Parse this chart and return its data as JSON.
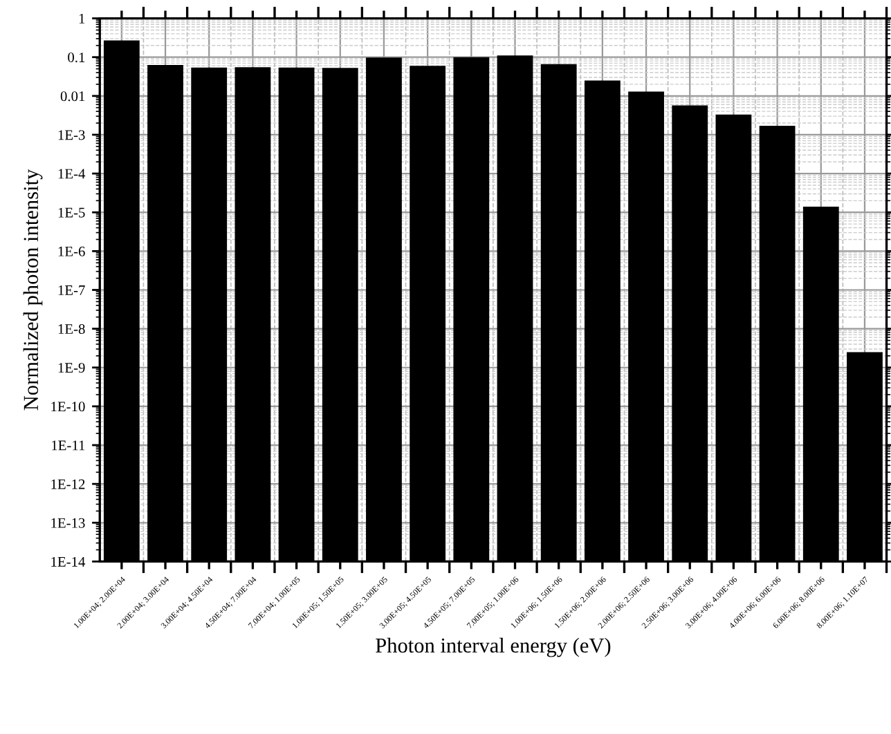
{
  "chart_data": {
    "type": "bar",
    "xlabel": "Photon interval energy (eV)",
    "ylabel": "Normalized photon intensity",
    "categories": [
      "1.00E+04; 2.00E+04",
      "2.00E+04; 3.00E+04",
      "3.00E+04; 4.50E+04",
      "4.50E+04; 7.00E+04",
      "7.00E+04; 1.00E+05",
      "1.00E+05; 1.50E+05",
      "1.50E+05; 3.00E+05",
      "3.00E+05; 4.50E+05",
      "4.50E+05; 7.00E+05",
      "7.00E+05; 1.00E+06",
      "1.00E+06; 1.50E+06",
      "1.50E+06; 2.00E+06",
      "2.00E+06; 2.50E+06",
      "2.50E+06; 3.00E+06",
      "3.00E+06; 4.00E+06",
      "4.00E+06; 6.00E+06",
      "6.00E+06; 8.00E+06",
      "8.00E+06; 1.10E+07"
    ],
    "values": [
      0.27,
      0.063,
      0.054,
      0.055,
      0.054,
      0.053,
      0.098,
      0.06,
      0.1,
      0.11,
      0.066,
      0.025,
      0.013,
      0.0057,
      0.0033,
      0.0017,
      1.4e-05,
      2.5e-09
    ],
    "color": "#000000",
    "log": "y",
    "grid": true,
    "ylim": [
      1e-14,
      1
    ],
    "yticks": [
      {
        "value": 1e-14,
        "label": "1E-14"
      },
      {
        "value": 1e-13,
        "label": "1E-13"
      },
      {
        "value": 1e-12,
        "label": "1E-12"
      },
      {
        "value": 1e-11,
        "label": "1E-11"
      },
      {
        "value": 1e-10,
        "label": "1E-10"
      },
      {
        "value": 1e-09,
        "label": "1E-9"
      },
      {
        "value": 1e-08,
        "label": "1E-8"
      },
      {
        "value": 1e-07,
        "label": "1E-7"
      },
      {
        "value": 1e-06,
        "label": "1E-6"
      },
      {
        "value": 1e-05,
        "label": "1E-5"
      },
      {
        "value": 0.0001,
        "label": "1E-4"
      },
      {
        "value": 0.001,
        "label": "1E-3"
      },
      {
        "value": 0.01,
        "label": "0.01"
      },
      {
        "value": 0.1,
        "label": "0.1"
      },
      1
    ]
  }
}
